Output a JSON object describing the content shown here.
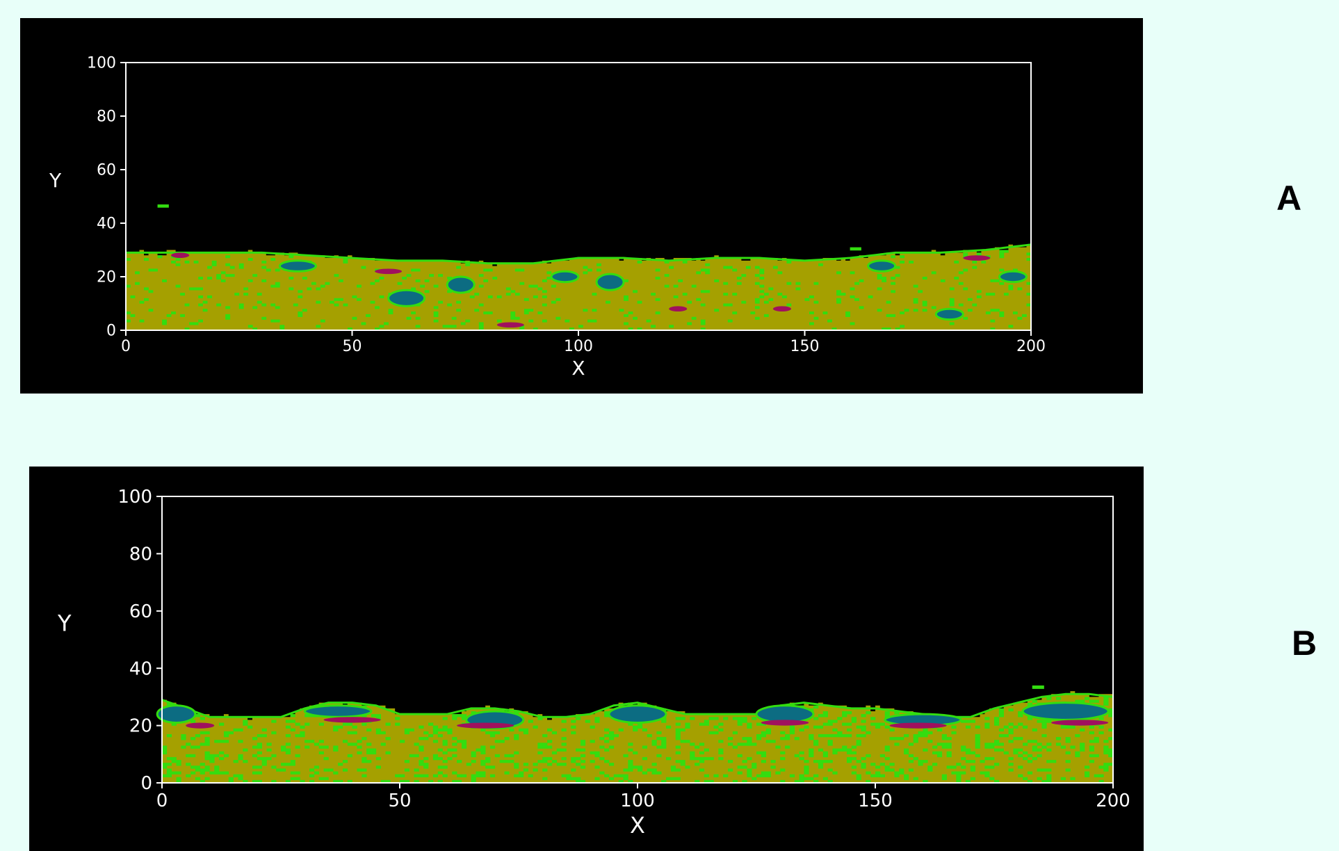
{
  "page": {
    "background": "#e8fff9"
  },
  "colors": {
    "panel_bg": "#000000",
    "axis": "#ffffff",
    "substrate": "#a5a000",
    "phase_green": "#33dd10",
    "phase_blue": "#0c6c82",
    "phase_magenta": "#a0105e"
  },
  "chart_data": [
    {
      "type": "heatmap",
      "panel_label": "A",
      "xlabel": "X",
      "ylabel": "Y",
      "xlim": [
        0,
        200
      ],
      "ylim": [
        0,
        100
      ],
      "x_ticks": [
        0,
        50,
        100,
        150,
        200
      ],
      "y_ticks": [
        0,
        20,
        40,
        60,
        80,
        100
      ],
      "grid": false,
      "surface_profile": {
        "x": [
          0,
          10,
          20,
          30,
          40,
          50,
          60,
          70,
          80,
          90,
          100,
          110,
          120,
          130,
          140,
          150,
          160,
          170,
          180,
          190,
          200
        ],
        "y": [
          29,
          29,
          29,
          29,
          28,
          27,
          26,
          26,
          25,
          25,
          27,
          27,
          26,
          27,
          27,
          26,
          27,
          29,
          29,
          30,
          32
        ]
      },
      "blue_regions": [
        {
          "x": 38,
          "y": 24,
          "rx": 4,
          "ry": 2
        },
        {
          "x": 62,
          "y": 12,
          "rx": 4,
          "ry": 3
        },
        {
          "x": 74,
          "y": 17,
          "rx": 3,
          "ry": 3
        },
        {
          "x": 97,
          "y": 20,
          "rx": 3,
          "ry": 2
        },
        {
          "x": 107,
          "y": 18,
          "rx": 3,
          "ry": 3
        },
        {
          "x": 167,
          "y": 24,
          "rx": 3,
          "ry": 2
        },
        {
          "x": 182,
          "y": 6,
          "rx": 3,
          "ry": 2
        },
        {
          "x": 196,
          "y": 20,
          "rx": 3,
          "ry": 2
        }
      ],
      "magenta_regions": [
        {
          "x": 12,
          "y": 28,
          "rx": 2,
          "ry": 1
        },
        {
          "x": 58,
          "y": 22,
          "rx": 3,
          "ry": 1
        },
        {
          "x": 85,
          "y": 2,
          "rx": 3,
          "ry": 1
        },
        {
          "x": 122,
          "y": 8,
          "rx": 2,
          "ry": 1
        },
        {
          "x": 145,
          "y": 8,
          "rx": 2,
          "ry": 1
        },
        {
          "x": 188,
          "y": 27,
          "rx": 3,
          "ry": 1
        }
      ],
      "floating_particles": [
        {
          "x": 7,
          "y": 47
        },
        {
          "x": 160,
          "y": 31
        }
      ]
    },
    {
      "type": "heatmap",
      "panel_label": "B",
      "xlabel": "X",
      "ylabel": "Y",
      "xlim": [
        0,
        200
      ],
      "ylim": [
        0,
        100
      ],
      "x_ticks": [
        0,
        50,
        100,
        150,
        200
      ],
      "y_ticks": [
        0,
        20,
        40,
        60,
        80,
        100
      ],
      "grid": false,
      "surface_profile": {
        "x": [
          0,
          5,
          10,
          15,
          20,
          25,
          30,
          35,
          40,
          45,
          50,
          55,
          60,
          65,
          70,
          75,
          80,
          85,
          90,
          95,
          100,
          105,
          110,
          115,
          120,
          125,
          130,
          135,
          140,
          145,
          150,
          155,
          160,
          165,
          170,
          175,
          180,
          185,
          190,
          195,
          200
        ],
        "y": [
          29,
          26,
          23,
          23,
          23,
          23,
          26,
          28,
          28,
          27,
          24,
          24,
          24,
          26,
          26,
          25,
          23,
          23,
          24,
          27,
          28,
          26,
          24,
          24,
          24,
          24,
          27,
          28,
          27,
          26,
          26,
          25,
          24,
          23,
          23,
          26,
          28,
          30,
          31,
          31,
          30
        ]
      },
      "blue_regions": [
        {
          "x": 3,
          "y": 24,
          "rx": 4,
          "ry": 3
        },
        {
          "x": 37,
          "y": 25,
          "rx": 7,
          "ry": 2
        },
        {
          "x": 70,
          "y": 22,
          "rx": 6,
          "ry": 3
        },
        {
          "x": 100,
          "y": 24,
          "rx": 6,
          "ry": 3
        },
        {
          "x": 131,
          "y": 24,
          "rx": 6,
          "ry": 3
        },
        {
          "x": 160,
          "y": 22,
          "rx": 8,
          "ry": 2
        },
        {
          "x": 190,
          "y": 25,
          "rx": 9,
          "ry": 3
        }
      ],
      "magenta_regions": [
        {
          "x": 8,
          "y": 20,
          "rx": 3,
          "ry": 1
        },
        {
          "x": 40,
          "y": 22,
          "rx": 6,
          "ry": 1
        },
        {
          "x": 68,
          "y": 20,
          "rx": 6,
          "ry": 1
        },
        {
          "x": 131,
          "y": 21,
          "rx": 5,
          "ry": 1
        },
        {
          "x": 159,
          "y": 20,
          "rx": 6,
          "ry": 1
        },
        {
          "x": 193,
          "y": 21,
          "rx": 6,
          "ry": 1
        }
      ],
      "floating_particles": [
        {
          "x": 183,
          "y": 34
        }
      ]
    }
  ]
}
